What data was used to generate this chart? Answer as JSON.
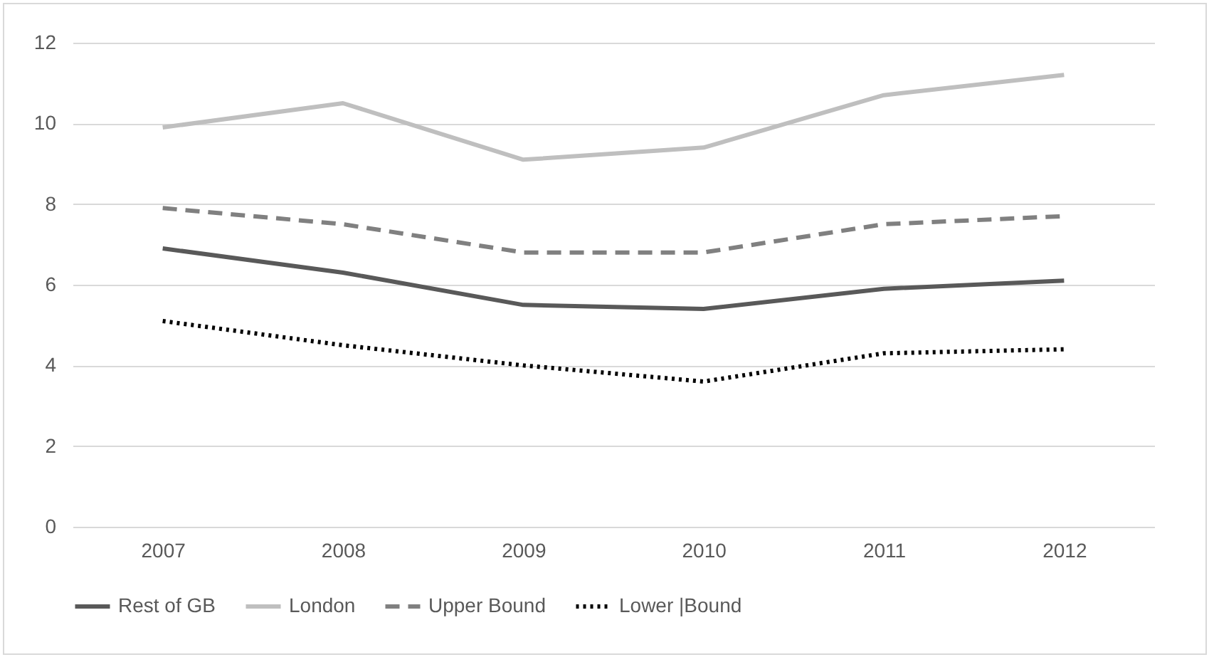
{
  "chart_data": {
    "type": "line",
    "categories": [
      "2007",
      "2008",
      "2009",
      "2010",
      "2011",
      "2012"
    ],
    "series": [
      {
        "name": "Rest of GB",
        "color": "#595959",
        "line_style": "solid",
        "values": [
          6.9,
          6.3,
          5.5,
          5.4,
          5.9,
          6.1
        ]
      },
      {
        "name": "London",
        "color": "#bfbfbf",
        "line_style": "solid",
        "values": [
          9.9,
          10.5,
          9.1,
          9.4,
          10.7,
          11.2
        ]
      },
      {
        "name": "Upper Bound",
        "color": "#808080",
        "line_style": "dashed",
        "values": [
          7.9,
          7.5,
          6.8,
          6.8,
          7.5,
          7.7
        ]
      },
      {
        "name": "Lower |Bound",
        "color": "#000000",
        "line_style": "dotted",
        "values": [
          5.1,
          4.5,
          4.0,
          3.6,
          4.3,
          4.4
        ]
      }
    ],
    "ylim": [
      0,
      12
    ],
    "yticks": [
      0,
      2,
      4,
      6,
      8,
      10,
      12
    ],
    "grid": "y",
    "legend": "bottom",
    "marker": "none"
  }
}
